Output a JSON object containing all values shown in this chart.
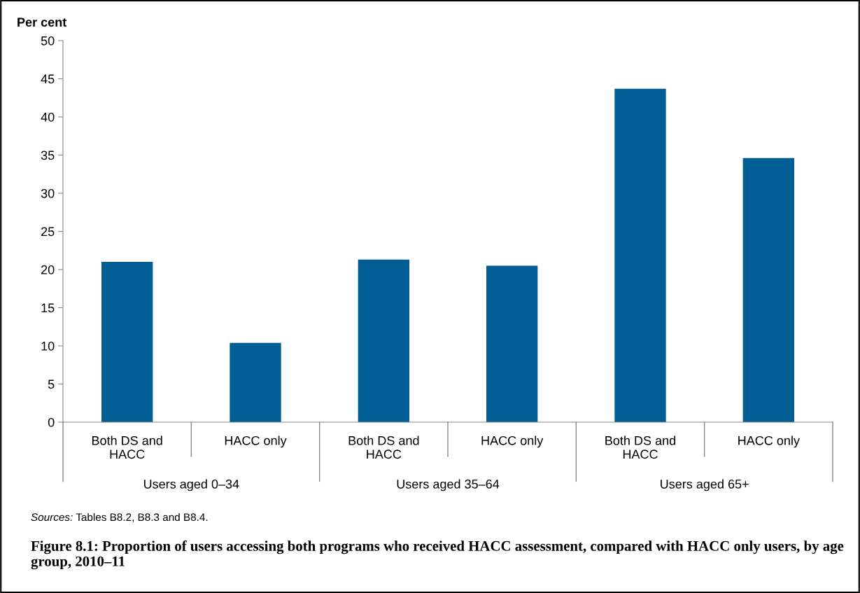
{
  "chart_data": {
    "type": "bar",
    "title": "Figure 8.1: Proportion of users accessing both programs who received HACC assessment, compared with HACC only users, by age group, 2010–11",
    "ylabel": "Per cent",
    "categories": [
      "Both DS and\nHACC",
      "HACC only",
      "Both DS and\nHACC",
      "HACC only",
      "Both DS and\nHACC",
      "HACC only"
    ],
    "values": [
      21.0,
      10.4,
      21.3,
      20.5,
      43.7,
      34.6
    ],
    "color": "#005e94",
    "ylim": [
      0,
      50
    ],
    "yticks": [
      0,
      5,
      10,
      15,
      20,
      25,
      30,
      35,
      40,
      45,
      50
    ],
    "grid": false,
    "legend": false,
    "annotations": [
      "Users aged 0–34",
      "Users aged 35–64",
      "Users aged 65+",
      "Sources: Tables B8.2, B8.3 and B8.4."
    ]
  }
}
